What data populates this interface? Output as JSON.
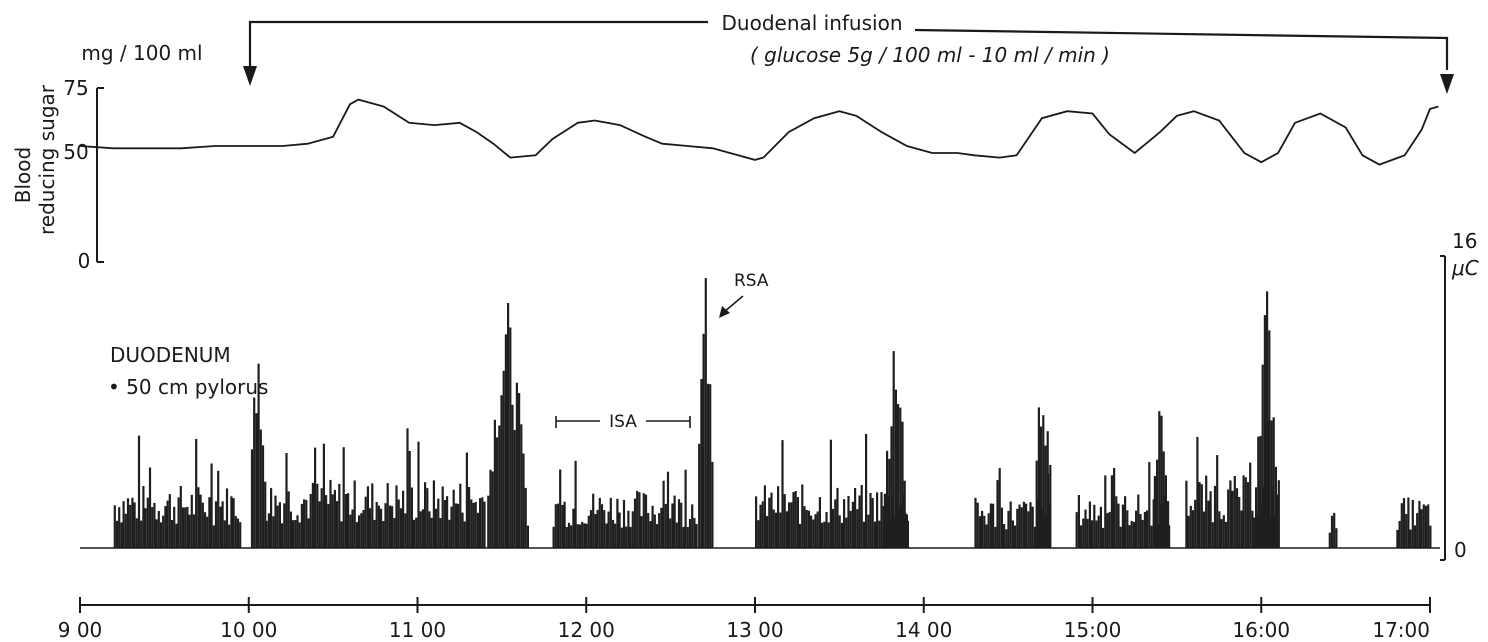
{
  "chart_data": [
    {
      "type": "line",
      "ylabel_line1": "Blood",
      "ylabel_line2": "reducing sugar",
      "yunit": "mg / 100 ml",
      "yticks": [
        "75",
        "50",
        "0"
      ],
      "ylim": [
        0,
        75
      ],
      "annotation": {
        "line1": "Duodenal   infusion",
        "line2": "( glucose  5g / 100 ml  -  10 ml / min )",
        "start": 10.0,
        "end": 17.15
      },
      "series": [
        {
          "x": [
            9.0,
            9.2,
            9.4,
            9.6,
            9.8,
            10.0,
            10.2,
            10.35,
            10.5,
            10.6,
            10.65,
            10.8,
            10.95,
            11.1,
            11.25,
            11.35,
            11.45,
            11.55,
            11.7,
            11.8,
            11.95,
            12.05,
            12.2,
            12.35,
            12.45,
            12.6,
            12.75,
            12.9,
            13.0,
            13.05,
            13.2,
            13.35,
            13.5,
            13.6,
            13.75,
            13.9,
            14.05,
            14.2,
            14.3,
            14.45,
            14.55,
            14.7,
            14.85,
            15.0,
            15.1,
            15.25,
            15.4,
            15.5,
            15.6,
            15.75,
            15.9,
            16.0,
            16.1,
            16.2,
            16.35,
            16.5,
            16.6,
            16.7,
            16.85,
            16.95,
            17.0,
            17.05
          ],
          "y": [
            50,
            49,
            49,
            49,
            50,
            50,
            50,
            51,
            54,
            68,
            70,
            67,
            60,
            59,
            60,
            56,
            51,
            45,
            46,
            53,
            60,
            61,
            59,
            54,
            51,
            50,
            49,
            46,
            44,
            45,
            56,
            62,
            65,
            63,
            56,
            50,
            47,
            47,
            46,
            45,
            46,
            62,
            65,
            64,
            55,
            47,
            56,
            63,
            65,
            61,
            47,
            43,
            47,
            60,
            64,
            58,
            46,
            42,
            46,
            57,
            66,
            67
          ]
        }
      ]
    },
    {
      "type": "bar",
      "label_line1": "DUODENUM",
      "label_line2": "• 50 cm  pylorus",
      "yunit": "μC",
      "yticks": [
        "16",
        "0"
      ],
      "ylim": [
        0,
        16
      ],
      "annotations": [
        {
          "text": "ISA",
          "from": 11.8,
          "to": 12.6
        },
        {
          "text": "RSA",
          "x": 12.7
        }
      ],
      "x_ticks": [
        "9 00",
        "10 00",
        "11 00",
        "12 00",
        "13 00",
        "14 00",
        "15:00",
        "16:00",
        "17:00"
      ],
      "activity_phases": [
        {
          "start": 9.2,
          "end": 9.95,
          "level": 3.5
        },
        {
          "start": 10.0,
          "end": 10.1,
          "peak": 13.0,
          "type": "RSA"
        },
        {
          "start": 10.1,
          "end": 11.4,
          "level": 3.8
        },
        {
          "start": 11.4,
          "end": 11.65,
          "peak": 14.0,
          "type": "RSA"
        },
        {
          "start": 11.8,
          "end": 12.65,
          "level": 3.2
        },
        {
          "start": 12.65,
          "end": 12.75,
          "peak": 15.5,
          "type": "RSA"
        },
        {
          "start": 13.0,
          "end": 13.9,
          "level": 3.5
        },
        {
          "start": 13.75,
          "end": 13.9,
          "peak": 12.0
        },
        {
          "start": 14.3,
          "end": 14.75,
          "level": 2.8
        },
        {
          "start": 14.65,
          "end": 14.75,
          "peak": 11.5,
          "type": "RSA"
        },
        {
          "start": 14.9,
          "end": 15.45,
          "level": 3.0
        },
        {
          "start": 15.35,
          "end": 15.45,
          "peak": 9.5,
          "type": "RSA"
        },
        {
          "start": 15.55,
          "end": 16.1,
          "level": 4.0
        },
        {
          "start": 15.95,
          "end": 16.1,
          "peak": 15.0,
          "type": "RSA"
        },
        {
          "start": 16.4,
          "end": 16.45,
          "level": 2.0
        },
        {
          "start": 16.8,
          "end": 17.0,
          "level": 2.8
        }
      ]
    }
  ]
}
